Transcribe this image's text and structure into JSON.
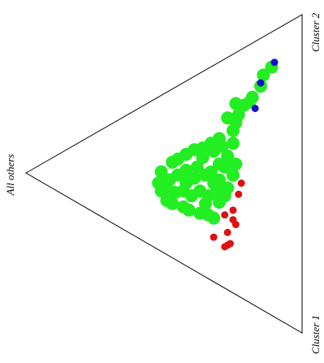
{
  "chart_data": {
    "type": "ternary",
    "vertex_labels": {
      "other": "All others",
      "cluster_1": "Cluster 1",
      "cluster_2": "Cluster 2"
    },
    "series": [
      {
        "color": "#22ee22",
        "cluster_1_share": [
          0.11,
          0.12,
          0.15,
          0.17,
          0.18,
          0.18,
          0.2,
          0.16,
          0.22,
          0.19,
          0.24,
          0.24,
          0.24,
          0.24,
          0.23,
          0.23,
          0.23,
          0.23,
          0.24,
          0.27,
          0.3,
          0.34,
          0.36,
          0.39,
          0.41,
          0.44,
          0.46,
          0.48,
          0.44,
          0.43,
          0.41,
          0.38,
          0.35,
          0.31,
          0.32,
          0.33,
          0.33,
          0.32,
          0.32,
          0.28,
          0.28,
          0.27,
          0.29,
          0.27,
          0.27,
          0.28,
          0.4,
          0.37,
          0.37,
          0.34,
          0.33,
          0.37,
          0.37,
          0.34,
          0.4,
          0.42,
          0.28,
          0.3
        ],
        "cluster_2_share": [
          0.78,
          0.74,
          0.7,
          0.65,
          0.63,
          0.61,
          0.57,
          0.6,
          0.54,
          0.54,
          0.51,
          0.46,
          0.43,
          0.4,
          0.38,
          0.35,
          0.32,
          0.3,
          0.25,
          0.21,
          0.19,
          0.17,
          0.17,
          0.18,
          0.18,
          0.19,
          0.2,
          0.2,
          0.26,
          0.29,
          0.32,
          0.37,
          0.41,
          0.42,
          0.38,
          0.34,
          0.32,
          0.29,
          0.26,
          0.27,
          0.24,
          0.37,
          0.33,
          0.41,
          0.44,
          0.47,
          0.26,
          0.26,
          0.23,
          0.23,
          0.21,
          0.31,
          0.33,
          0.38,
          0.29,
          0.23,
          0.3,
          0.21
        ]
      },
      {
        "color": "#dd1111",
        "cluster_1_share": [
          0.42,
          0.45,
          0.49,
          0.49,
          0.52,
          0.54,
          0.55,
          0.59,
          0.59,
          0.59,
          0.54
        ],
        "cluster_2_share": [
          0.36,
          0.32,
          0.26,
          0.23,
          0.23,
          0.14,
          0.18,
          0.14,
          0.15,
          0.13,
          0.22
        ]
      },
      {
        "color": "#1111cc",
        "cluster_1_share": [
          0.1,
          0.14,
          0.21
        ],
        "cluster_2_share": [
          0.8,
          0.71,
          0.62
        ]
      }
    ]
  }
}
